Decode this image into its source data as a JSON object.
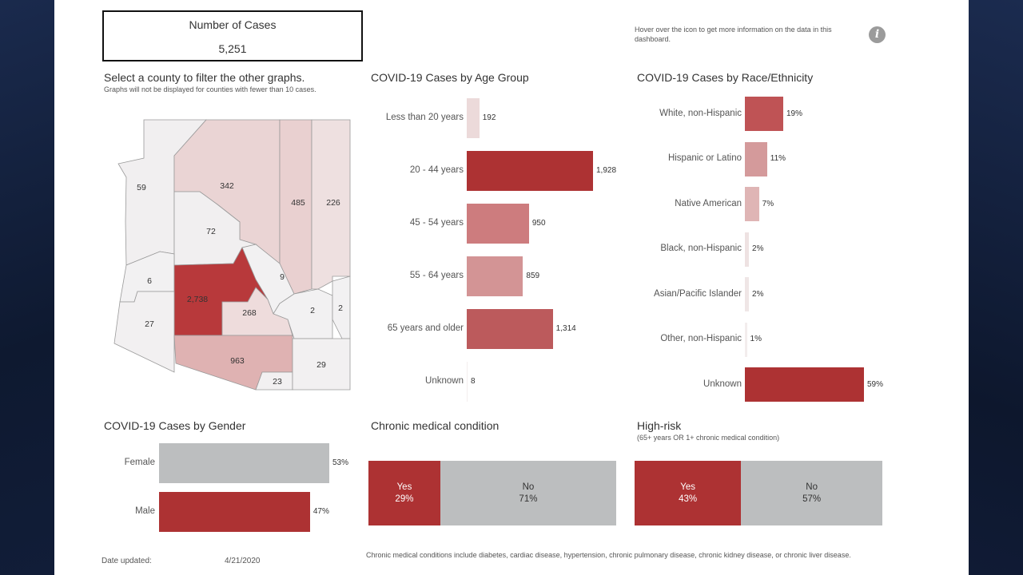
{
  "kpi": {
    "label": "Number of Cases",
    "value": "5,251"
  },
  "hover_note": "Hover over the icon to get more information on the data in this dashboard.",
  "info_icon": "info-icon",
  "map": {
    "title": "Select a county to filter the other graphs.",
    "subtitle": "Graphs will not be displayed for counties with fewer than 10 cases.",
    "counties": [
      {
        "key": "mohave",
        "value": "59",
        "fill": "#f1eff0"
      },
      {
        "key": "coconino",
        "value": "342",
        "fill": "#ead4d4"
      },
      {
        "key": "navajo",
        "value": "485",
        "fill": "#e9d0d0"
      },
      {
        "key": "apache",
        "value": "226",
        "fill": "#eee0e0"
      },
      {
        "key": "yavapai",
        "value": "72",
        "fill": "#f1eff0"
      },
      {
        "key": "lapaz",
        "value": "6",
        "fill": "#f2f1f2"
      },
      {
        "key": "gila",
        "value": "9",
        "fill": "#f2f1f2"
      },
      {
        "key": "maricopa",
        "value": "2,738",
        "fill": "#b8393b"
      },
      {
        "key": "graham",
        "value": "2",
        "fill": "#f2f1f2"
      },
      {
        "key": "greenlee",
        "value": "2",
        "fill": "#f2f1f2"
      },
      {
        "key": "pinal",
        "value": "268",
        "fill": "#eedcdc"
      },
      {
        "key": "yuma",
        "value": "27",
        "fill": "#f2f0f1"
      },
      {
        "key": "pima",
        "value": "963",
        "fill": "#dfb2b2"
      },
      {
        "key": "santacruz",
        "value": "23",
        "fill": "#f2f0f1"
      },
      {
        "key": "cochise",
        "value": "29",
        "fill": "#f2f0f1"
      }
    ]
  },
  "chart_data": [
    {
      "type": "bar",
      "orientation": "horizontal",
      "title": "COVID-19 Cases by Age Group",
      "categories": [
        "Less than 20 years",
        "20 - 44 years",
        "45 - 54 years",
        "55 - 64 years",
        "65 years and older",
        "Unknown"
      ],
      "values": [
        192,
        1928,
        950,
        859,
        1314,
        8
      ],
      "value_labels": [
        "192",
        "1,928",
        "950",
        "859",
        "1,314",
        "8"
      ],
      "colors": [
        "#ecdada",
        "#ad3233",
        "#cd7c7e",
        "#d39495",
        "#bc5a5c",
        "#f4eeee"
      ],
      "xlim": [
        0,
        1928
      ]
    },
    {
      "type": "bar",
      "orientation": "horizontal",
      "title": "COVID-19 Cases by Race/Ethnicity",
      "categories": [
        "White, non-Hispanic",
        "Hispanic or Latino",
        "Native American",
        "Black, non-Hispanic",
        "Asian/Pacific Islander",
        "Other, non-Hispanic",
        "Unknown"
      ],
      "values": [
        19,
        11,
        7,
        2,
        2,
        1,
        59
      ],
      "value_labels": [
        "19%",
        "11%",
        "7%",
        "2%",
        "2%",
        "1%",
        "59%"
      ],
      "colors": [
        "#bf5355",
        "#d49a9b",
        "#dfb5b5",
        "#eee2e2",
        "#efe6e6",
        "#f3eded",
        "#ad3233"
      ],
      "xlim": [
        0,
        59
      ]
    },
    {
      "type": "bar",
      "orientation": "horizontal",
      "title": "COVID-19 Cases by Gender",
      "categories": [
        "Female",
        "Male"
      ],
      "values": [
        53,
        47
      ],
      "value_labels": [
        "53%",
        "47%"
      ],
      "colors": [
        "#bcbebf",
        "#ad3233"
      ],
      "xlim": [
        0,
        53
      ]
    },
    {
      "type": "bar",
      "orientation": "stacked-horizontal",
      "title": "Chronic medical condition",
      "categories": [
        "Yes",
        "No"
      ],
      "values": [
        29,
        71
      ],
      "value_labels": [
        "29%",
        "71%"
      ],
      "colors": [
        "#ad3233",
        "#bcbebf"
      ]
    },
    {
      "type": "bar",
      "orientation": "stacked-horizontal",
      "title": "High-risk",
      "subtitle": "(65+ years OR 1+ chronic medical condition)",
      "categories": [
        "Yes",
        "No"
      ],
      "values": [
        43,
        57
      ],
      "value_labels": [
        "43%",
        "57%"
      ],
      "colors": [
        "#ad3233",
        "#bcbebf"
      ]
    }
  ],
  "footer": {
    "date_label": "Date updated:",
    "date_value": "4/21/2020",
    "note": "Chronic medical conditions include diabetes, cardiac disease, hypertension, chronic pulmonary disease, chronic kidney disease, or chronic liver disease."
  }
}
